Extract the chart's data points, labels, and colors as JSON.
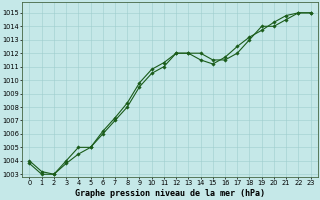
{
  "xlabel": "Graphe pression niveau de la mer (hPa)",
  "x_line1": [
    0,
    1,
    2,
    3,
    4,
    5,
    6,
    7,
    8,
    9,
    10,
    11,
    12,
    13,
    14,
    15,
    16,
    17,
    18,
    19,
    20,
    21,
    22,
    23
  ],
  "y_line1": [
    1004.0,
    1003.2,
    1003.0,
    1004.0,
    1005.0,
    1005.0,
    1006.0,
    1007.0,
    1008.0,
    1009.5,
    1010.5,
    1011.0,
    1012.0,
    1012.0,
    1012.0,
    1011.5,
    1011.5,
    1012.0,
    1013.0,
    1014.0,
    1014.0,
    1014.5,
    1015.0,
    1015.0
  ],
  "x_line2": [
    0,
    1,
    2,
    3,
    4,
    5,
    6,
    7,
    8,
    9,
    10,
    11,
    12,
    13,
    14,
    15,
    16,
    17,
    18,
    19,
    20,
    21,
    22,
    23
  ],
  "y_line2": [
    1003.8,
    1003.0,
    1003.0,
    1003.8,
    1004.5,
    1005.0,
    1006.2,
    1007.2,
    1008.3,
    1009.8,
    1010.8,
    1011.3,
    1012.0,
    1012.0,
    1011.5,
    1011.2,
    1011.7,
    1012.5,
    1013.2,
    1013.7,
    1014.3,
    1014.8,
    1015.0,
    1015.0
  ],
  "ylim_min": 1002.8,
  "ylim_max": 1015.8,
  "yticks": [
    1003,
    1004,
    1005,
    1006,
    1007,
    1008,
    1009,
    1010,
    1011,
    1012,
    1013,
    1014,
    1015
  ],
  "xticks": [
    0,
    1,
    2,
    3,
    4,
    5,
    6,
    7,
    8,
    9,
    10,
    11,
    12,
    13,
    14,
    15,
    16,
    17,
    18,
    19,
    20,
    21,
    22,
    23
  ],
  "bg_color": "#c5e8e8",
  "line_color": "#1a5c1a",
  "grid_color": "#9ecece",
  "marker": "D",
  "markersize": 1.8,
  "linewidth": 0.8,
  "xlabel_fontsize": 6.0,
  "tick_fontsize": 4.8,
  "fig_width": 3.2,
  "fig_height": 2.0,
  "fig_dpi": 100
}
